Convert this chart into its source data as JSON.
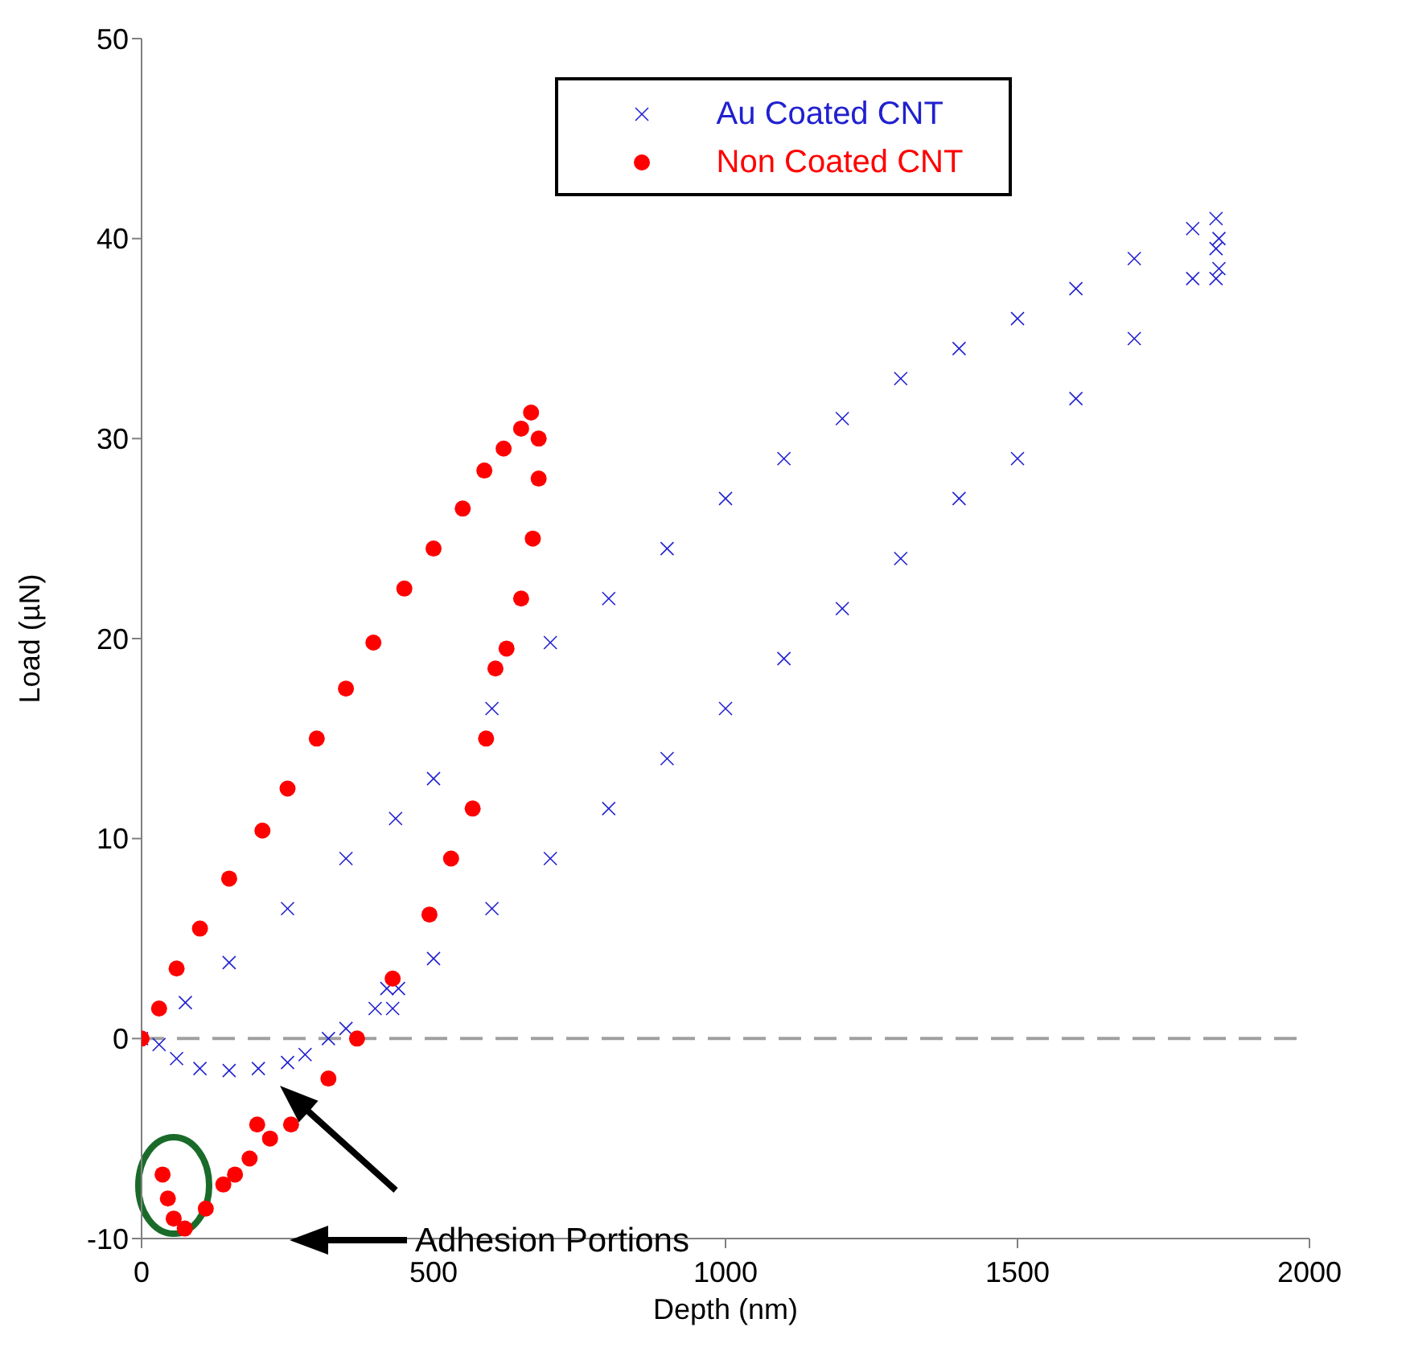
{
  "chart_data": {
    "type": "scatter",
    "xlabel": "Depth (nm)",
    "ylabel": "Load (µN)",
    "xlim": [
      0,
      2000
    ],
    "xticks": [
      0,
      500,
      1000,
      1500,
      2000
    ],
    "ylim": [
      -10,
      50
    ],
    "yticks": [
      -10,
      0,
      10,
      20,
      30,
      40,
      50
    ],
    "grid": false,
    "legend": "top",
    "ref_lines": [
      {
        "axis": "y",
        "value": 0,
        "color": "#a0a0a0",
        "line_style": "dashed"
      }
    ],
    "annotations": [
      "Adhesion Portions"
    ],
    "series": [
      {
        "name": "Au Coated CNT",
        "color": "#2020d0",
        "marker": "cross",
        "x": [
          0,
          75,
          150,
          250,
          350,
          435,
          500,
          600,
          700,
          800,
          900,
          1000,
          1100,
          1200,
          1300,
          1400,
          1500,
          1600,
          1700,
          1800,
          1840,
          1845,
          1840,
          1845,
          1840,
          1800,
          1700,
          1600,
          1500,
          1400,
          1300,
          1200,
          1100,
          1000,
          900,
          800,
          700,
          600,
          500,
          440,
          430,
          420,
          400,
          350,
          320,
          280,
          250,
          200,
          150,
          100,
          60,
          30
        ],
        "values": [
          0,
          1.8,
          3.8,
          6.5,
          9,
          11,
          13,
          16.5,
          19.8,
          22,
          24.5,
          27,
          29,
          31,
          33,
          34.5,
          36,
          37.5,
          39,
          40.5,
          41,
          40,
          39.5,
          38.5,
          38,
          38,
          35,
          32,
          29,
          27,
          24,
          21.5,
          19,
          16.5,
          14,
          11.5,
          9,
          6.5,
          4,
          2.5,
          1.5,
          2.5,
          1.5,
          0.5,
          0,
          -0.8,
          -1.2,
          -1.5,
          -1.6,
          -1.5,
          -1,
          -0.3
        ]
      },
      {
        "name": "Non Coated CNT",
        "color": "#ff0000",
        "marker": "circle",
        "x": [
          0,
          30,
          60,
          100,
          150,
          207,
          250,
          300,
          350,
          397,
          450,
          500,
          550,
          587,
          620,
          650,
          667,
          680,
          680,
          670,
          650,
          625,
          606,
          590,
          567,
          530,
          493,
          430,
          369,
          320,
          256,
          220,
          198,
          185,
          160,
          140,
          110,
          74,
          55,
          45,
          36
        ],
        "values": [
          0,
          1.5,
          3.5,
          5.5,
          8,
          10.4,
          12.5,
          15,
          17.5,
          19.8,
          22.5,
          24.5,
          26.5,
          28.4,
          29.5,
          30.5,
          31.3,
          30,
          28,
          25,
          22,
          19.5,
          18.5,
          15,
          11.5,
          9,
          6.2,
          3,
          0,
          -2,
          -4.3,
          -5,
          -4.3,
          -6,
          -6.8,
          -7.3,
          -8.5,
          -9.5,
          -9,
          -8,
          -6.8
        ]
      }
    ]
  }
}
